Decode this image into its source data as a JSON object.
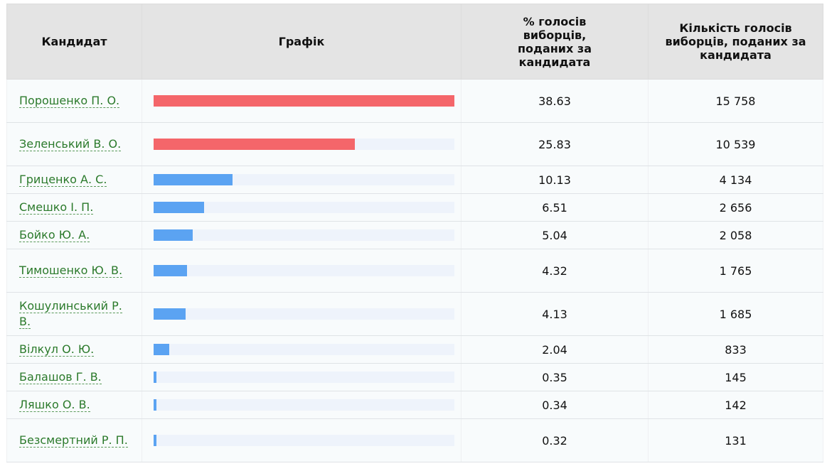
{
  "table": {
    "headers": {
      "candidate": "Кандидат",
      "chart": "Графік",
      "percent": "% голосів виборців, поданих за кандидата",
      "votes": "Кількість голосів виборців, поданих за кандидата"
    },
    "rows": [
      {
        "name": "Порошенко П. О.",
        "percent": "38.63",
        "votes": "15 758",
        "leader": true
      },
      {
        "name": "Зеленський В. О.",
        "percent": "25.83",
        "votes": "10 539",
        "leader": true
      },
      {
        "name": "Гриценко А. С.",
        "percent": "10.13",
        "votes": "4 134",
        "leader": false
      },
      {
        "name": "Смешко І. П.",
        "percent": "6.51",
        "votes": "2 656",
        "leader": false
      },
      {
        "name": "Бойко Ю. А.",
        "percent": "5.04",
        "votes": "2 058",
        "leader": false
      },
      {
        "name": "Тимошенко Ю. В.",
        "percent": "4.32",
        "votes": "1 765",
        "leader": false
      },
      {
        "name": "Кошулинський Р. В.",
        "percent": "4.13",
        "votes": "1 685",
        "leader": false
      },
      {
        "name": "Вілкул О. Ю.",
        "percent": "2.04",
        "votes": "833",
        "leader": false
      },
      {
        "name": "Балашов Г. В.",
        "percent": "0.35",
        "votes": "145",
        "leader": false
      },
      {
        "name": "Ляшко О. В.",
        "percent": "0.34",
        "votes": "142",
        "leader": false
      },
      {
        "name": "Безсмертний Р. П.",
        "percent": "0.32",
        "votes": "131",
        "leader": false
      }
    ]
  },
  "colors": {
    "leader_bar": "#f4666a",
    "other_bar": "#5ba3f2",
    "bar_track": "#eef3fb",
    "link": "#2b7a2b"
  }
}
